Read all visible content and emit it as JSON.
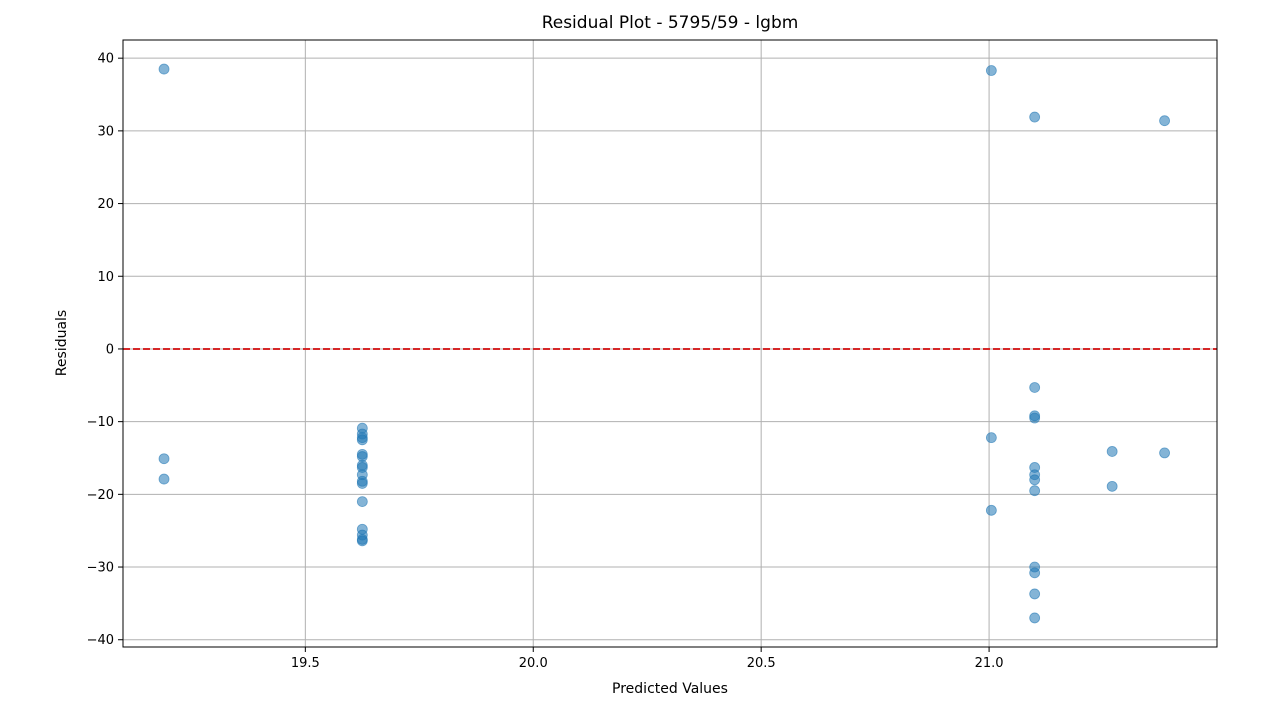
{
  "chart_data": {
    "type": "scatter",
    "title": "Residual Plot - 5795/59 - lgbm",
    "xlabel": "Predicted Values",
    "ylabel": "Residuals",
    "xlim": [
      19.1,
      21.5
    ],
    "ylim": [
      -41,
      42.5
    ],
    "xticks": [
      19.5,
      20.0,
      20.5,
      21.0
    ],
    "xtick_labels": [
      "19.5",
      "20.0",
      "20.5",
      "21.0"
    ],
    "yticks": [
      -40,
      -30,
      -20,
      -10,
      0,
      10,
      20,
      30,
      40
    ],
    "ytick_labels": [
      "−40",
      "−30",
      "−20",
      "−10",
      "0",
      "10",
      "20",
      "30",
      "40"
    ],
    "grid": true,
    "point_color": "#1f77b4",
    "point_alpha": 0.55,
    "reference_line": {
      "y": 0,
      "color": "#d62728",
      "style": "dashed"
    },
    "series": [
      {
        "points": [
          {
            "x": 19.19,
            "y": 38.5
          },
          {
            "x": 19.19,
            "y": -15.1
          },
          {
            "x": 19.19,
            "y": -17.9
          },
          {
            "x": 19.625,
            "y": -10.9
          },
          {
            "x": 19.625,
            "y": -11.7
          },
          {
            "x": 19.625,
            "y": -12.2
          },
          {
            "x": 19.625,
            "y": -12.5
          },
          {
            "x": 19.625,
            "y": -14.5
          },
          {
            "x": 19.625,
            "y": -14.8
          },
          {
            "x": 19.625,
            "y": -16.0
          },
          {
            "x": 19.625,
            "y": -16.3
          },
          {
            "x": 19.625,
            "y": -17.3
          },
          {
            "x": 19.625,
            "y": -18.2
          },
          {
            "x": 19.625,
            "y": -18.5
          },
          {
            "x": 19.625,
            "y": -21.0
          },
          {
            "x": 19.625,
            "y": -24.8
          },
          {
            "x": 19.625,
            "y": -25.6
          },
          {
            "x": 19.625,
            "y": -26.2
          },
          {
            "x": 19.625,
            "y": -26.4
          },
          {
            "x": 21.005,
            "y": 38.3
          },
          {
            "x": 21.005,
            "y": -12.2
          },
          {
            "x": 21.005,
            "y": -22.2
          },
          {
            "x": 21.1,
            "y": 31.9
          },
          {
            "x": 21.1,
            "y": -5.3
          },
          {
            "x": 21.1,
            "y": -9.2
          },
          {
            "x": 21.1,
            "y": -9.5
          },
          {
            "x": 21.1,
            "y": -16.3
          },
          {
            "x": 21.1,
            "y": -17.3
          },
          {
            "x": 21.1,
            "y": -18.0
          },
          {
            "x": 21.1,
            "y": -19.5
          },
          {
            "x": 21.1,
            "y": -30.0
          },
          {
            "x": 21.1,
            "y": -30.8
          },
          {
            "x": 21.1,
            "y": -33.7
          },
          {
            "x": 21.1,
            "y": -37.0
          },
          {
            "x": 21.27,
            "y": -14.1
          },
          {
            "x": 21.27,
            "y": -18.9
          },
          {
            "x": 21.385,
            "y": 31.4
          },
          {
            "x": 21.385,
            "y": -14.3
          }
        ]
      }
    ]
  }
}
